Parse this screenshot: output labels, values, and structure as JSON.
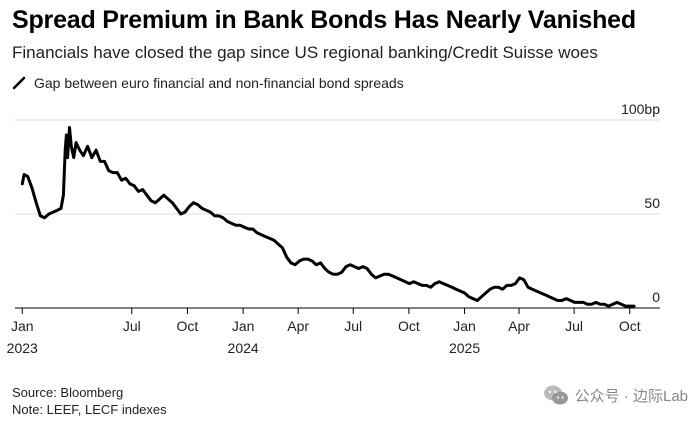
{
  "header": {
    "title": "Spread Premium in Bank Bonds Has Nearly Vanished",
    "subtitle": "Financials have closed the gap since US regional banking/Credit Suisse woes"
  },
  "footer": {
    "source": "Source: Bloomberg",
    "note": "Note: LEEF, LECF indexes"
  },
  "watermark": {
    "text": "公众号 · 边际Lab"
  },
  "chart_data": {
    "type": "line",
    "title": "Spread Premium in Bank Bonds Has Nearly Vanished",
    "subtitle": "Financials have closed the gap since US regional banking/Credit Suisse woes",
    "xlabel": "",
    "ylabel": "",
    "ylim": [
      0,
      100
    ],
    "y_ticks": [
      {
        "value": 0,
        "label": "0"
      },
      {
        "value": 50,
        "label": "50"
      },
      {
        "value": 100,
        "label": "100bp"
      }
    ],
    "x_ticks": [
      {
        "x": "2023-01",
        "label": "Jan",
        "year": "2023"
      },
      {
        "x": "2023-07",
        "label": "Jul",
        "year": ""
      },
      {
        "x": "2023-10",
        "label": "Oct",
        "year": ""
      },
      {
        "x": "2024-01",
        "label": "Jan",
        "year": "2024"
      },
      {
        "x": "2024-04",
        "label": "Apr",
        "year": ""
      },
      {
        "x": "2024-07",
        "label": "Jul",
        "year": ""
      },
      {
        "x": "2024-10",
        "label": "Oct",
        "year": ""
      },
      {
        "x": "2025-01",
        "label": "Jan",
        "year": "2025"
      },
      {
        "x": "2025-04",
        "label": "Apr",
        "year": ""
      },
      {
        "x": "2025-07",
        "label": "Jul",
        "year": ""
      },
      {
        "x": "2025-10",
        "label": "Oct",
        "year": ""
      }
    ],
    "grid": "horizontal",
    "legend_position": "top-left",
    "series": [
      {
        "name": "Gap between euro financial and non-financial bond spreads",
        "color": "#000000",
        "points": [
          [
            "2023-01-01",
            66
          ],
          [
            "2023-01-04",
            71
          ],
          [
            "2023-01-10",
            70
          ],
          [
            "2023-01-17",
            64
          ],
          [
            "2023-01-24",
            56
          ],
          [
            "2023-01-31",
            49
          ],
          [
            "2023-02-07",
            48
          ],
          [
            "2023-02-14",
            50
          ],
          [
            "2023-02-21",
            51
          ],
          [
            "2023-02-28",
            52
          ],
          [
            "2023-03-06",
            53
          ],
          [
            "2023-03-10",
            60
          ],
          [
            "2023-03-13",
            84
          ],
          [
            "2023-03-15",
            92
          ],
          [
            "2023-03-17",
            80
          ],
          [
            "2023-03-20",
            96
          ],
          [
            "2023-03-23",
            86
          ],
          [
            "2023-03-27",
            80
          ],
          [
            "2023-03-31",
            88
          ],
          [
            "2023-04-06",
            84
          ],
          [
            "2023-04-12",
            81
          ],
          [
            "2023-04-19",
            86
          ],
          [
            "2023-04-26",
            80
          ],
          [
            "2023-05-03",
            84
          ],
          [
            "2023-05-10",
            78
          ],
          [
            "2023-05-17",
            78
          ],
          [
            "2023-05-24",
            73
          ],
          [
            "2023-05-31",
            72
          ],
          [
            "2023-06-07",
            72
          ],
          [
            "2023-06-14",
            68
          ],
          [
            "2023-06-21",
            69
          ],
          [
            "2023-06-28",
            66
          ],
          [
            "2023-07-05",
            65
          ],
          [
            "2023-07-12",
            62
          ],
          [
            "2023-07-19",
            63
          ],
          [
            "2023-07-26",
            60
          ],
          [
            "2023-08-02",
            57
          ],
          [
            "2023-08-09",
            56
          ],
          [
            "2023-08-16",
            58
          ],
          [
            "2023-08-23",
            60
          ],
          [
            "2023-08-30",
            58
          ],
          [
            "2023-09-06",
            56
          ],
          [
            "2023-09-13",
            53
          ],
          [
            "2023-09-20",
            50
          ],
          [
            "2023-09-27",
            51
          ],
          [
            "2023-10-04",
            54
          ],
          [
            "2023-10-11",
            56
          ],
          [
            "2023-10-18",
            55
          ],
          [
            "2023-10-25",
            53
          ],
          [
            "2023-11-01",
            52
          ],
          [
            "2023-11-08",
            51
          ],
          [
            "2023-11-15",
            49
          ],
          [
            "2023-11-22",
            49
          ],
          [
            "2023-11-29",
            48
          ],
          [
            "2023-12-06",
            46
          ],
          [
            "2023-12-13",
            45
          ],
          [
            "2023-12-20",
            44
          ],
          [
            "2023-12-27",
            44
          ],
          [
            "2024-01-03",
            43
          ],
          [
            "2024-01-10",
            42
          ],
          [
            "2024-01-17",
            42
          ],
          [
            "2024-01-24",
            40
          ],
          [
            "2024-01-31",
            39
          ],
          [
            "2024-02-07",
            38
          ],
          [
            "2024-02-14",
            37
          ],
          [
            "2024-02-21",
            36
          ],
          [
            "2024-02-28",
            34
          ],
          [
            "2024-03-06",
            32
          ],
          [
            "2024-03-13",
            27
          ],
          [
            "2024-03-20",
            24
          ],
          [
            "2024-03-27",
            23
          ],
          [
            "2024-04-03",
            25
          ],
          [
            "2024-04-10",
            26
          ],
          [
            "2024-04-17",
            26
          ],
          [
            "2024-04-24",
            25
          ],
          [
            "2024-05-01",
            23
          ],
          [
            "2024-05-08",
            24
          ],
          [
            "2024-05-15",
            21
          ],
          [
            "2024-05-22",
            19
          ],
          [
            "2024-05-29",
            18
          ],
          [
            "2024-06-05",
            18
          ],
          [
            "2024-06-12",
            19
          ],
          [
            "2024-06-19",
            22
          ],
          [
            "2024-06-26",
            23
          ],
          [
            "2024-07-03",
            22
          ],
          [
            "2024-07-10",
            21
          ],
          [
            "2024-07-17",
            22
          ],
          [
            "2024-07-24",
            21
          ],
          [
            "2024-07-31",
            18
          ],
          [
            "2024-08-07",
            16
          ],
          [
            "2024-08-14",
            17
          ],
          [
            "2024-08-21",
            18
          ],
          [
            "2024-08-28",
            18
          ],
          [
            "2024-09-04",
            17
          ],
          [
            "2024-09-11",
            16
          ],
          [
            "2024-09-18",
            15
          ],
          [
            "2024-09-25",
            14
          ],
          [
            "2024-10-02",
            13
          ],
          [
            "2024-10-09",
            14
          ],
          [
            "2024-10-16",
            13
          ],
          [
            "2024-10-23",
            12
          ],
          [
            "2024-10-30",
            12
          ],
          [
            "2024-11-06",
            11
          ],
          [
            "2024-11-13",
            13
          ],
          [
            "2024-11-20",
            14
          ],
          [
            "2024-11-27",
            13
          ],
          [
            "2024-12-04",
            12
          ],
          [
            "2024-12-11",
            11
          ],
          [
            "2024-12-18",
            10
          ],
          [
            "2024-12-25",
            9
          ],
          [
            "2025-01-01",
            8
          ],
          [
            "2025-01-08",
            6
          ],
          [
            "2025-01-15",
            5
          ],
          [
            "2025-01-22",
            4
          ],
          [
            "2025-01-29",
            6
          ],
          [
            "2025-02-05",
            8
          ],
          [
            "2025-02-12",
            10
          ],
          [
            "2025-02-19",
            11
          ],
          [
            "2025-02-26",
            11
          ],
          [
            "2025-03-05",
            10
          ],
          [
            "2025-03-12",
            12
          ],
          [
            "2025-03-19",
            12
          ],
          [
            "2025-03-26",
            13
          ],
          [
            "2025-04-02",
            16
          ],
          [
            "2025-04-09",
            15
          ],
          [
            "2025-04-16",
            11
          ],
          [
            "2025-04-23",
            10
          ],
          [
            "2025-04-30",
            9
          ],
          [
            "2025-05-07",
            8
          ],
          [
            "2025-05-14",
            7
          ],
          [
            "2025-05-21",
            6
          ],
          [
            "2025-05-28",
            5
          ],
          [
            "2025-06-04",
            4
          ],
          [
            "2025-06-11",
            4
          ],
          [
            "2025-06-18",
            5
          ],
          [
            "2025-06-25",
            4
          ],
          [
            "2025-07-02",
            3
          ],
          [
            "2025-07-09",
            3
          ],
          [
            "2025-07-16",
            3
          ],
          [
            "2025-07-23",
            2
          ],
          [
            "2025-07-30",
            2
          ],
          [
            "2025-08-06",
            3
          ],
          [
            "2025-08-13",
            2
          ],
          [
            "2025-08-20",
            2
          ],
          [
            "2025-08-27",
            1
          ],
          [
            "2025-09-03",
            2
          ],
          [
            "2025-09-10",
            3
          ],
          [
            "2025-09-17",
            2
          ],
          [
            "2025-09-24",
            1
          ],
          [
            "2025-10-01",
            1
          ],
          [
            "2025-10-08",
            1
          ]
        ]
      }
    ]
  }
}
